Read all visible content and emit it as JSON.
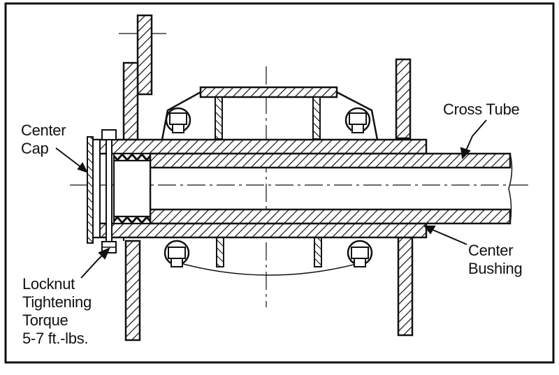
{
  "labels": {
    "center_cap": [
      "Center",
      "Cap"
    ],
    "cross_tube": "Cross Tube",
    "center_bushing": [
      "Center",
      "Bushing"
    ],
    "locknut": [
      "Locknut",
      "Tightening",
      "Torque",
      "5-7 ft.-lbs."
    ]
  },
  "colors": {
    "ink": "#111111",
    "paper": "#ffffff"
  }
}
